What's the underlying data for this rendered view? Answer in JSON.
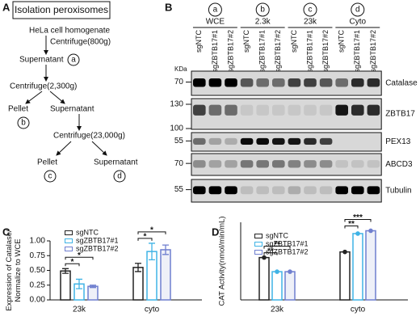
{
  "panel_a": {
    "label": "A",
    "title": "Isolation peroxisomes",
    "nodes": [
      "HeLa cell homogenate",
      "Centrifuge(800g)",
      "Supernatant",
      "a",
      "Centrifuge(2,300g)",
      "Pellet",
      "b",
      "Supernatant",
      "Centrifuge(23,000g)",
      "Pellet",
      "c",
      "Supernatant",
      "d"
    ]
  },
  "panel_b": {
    "label": "B",
    "kda": "KDa",
    "groups": [
      {
        "letter": "a",
        "name": "WCE"
      },
      {
        "letter": "b",
        "name": "2.3k"
      },
      {
        "letter": "c",
        "name": "23k"
      },
      {
        "letter": "d",
        "name": "Cyto"
      }
    ],
    "lanes": [
      "sgNTC",
      "sgZBTB17#1",
      "sgZBTB17#2",
      "sgNTC",
      "sgZBTB17#1",
      "sgZBTB17#2",
      "sgNTC",
      "sgZBTB17#1",
      "sgZBTB17#2",
      "sgNTC",
      "sgZBTB17#1",
      "sgZBTB17#2"
    ],
    "blots": [
      {
        "name": "Catalase",
        "markers": [
          70
        ]
      },
      {
        "name": "ZBTB17",
        "markers": [
          130,
          100
        ]
      },
      {
        "name": "PEX13",
        "markers": [
          55
        ]
      },
      {
        "name": "ABCD3",
        "markers": [
          70
        ]
      },
      {
        "name": "Tubulin",
        "markers": [
          55
        ]
      }
    ]
  },
  "chart_data": [
    {
      "type": "bar",
      "panel_label": "C",
      "ylabel": "Expression of Catalase/\nNormalize to WCE",
      "categories": [
        "23k",
        "cyto"
      ],
      "series": [
        {
          "name": "sgNTC",
          "color": "#222222",
          "values": [
            0.49,
            0.55
          ],
          "errors": [
            0.04,
            0.07
          ]
        },
        {
          "name": "sgZBTB17#1",
          "color": "#3fb3e6",
          "values": [
            0.27,
            0.82
          ],
          "errors": [
            0.08,
            0.14
          ]
        },
        {
          "name": "sgZBTB17#2",
          "color": "#6f7fcf",
          "values": [
            0.23,
            0.85
          ],
          "errors": [
            0.02,
            0.08
          ]
        }
      ],
      "ylim": [
        0,
        1.0
      ],
      "yticks": [
        {
          "value": 0,
          "label": "0.00"
        },
        {
          "value": 0.25,
          "label": "0.25"
        },
        {
          "value": 0.5,
          "label": "0.50"
        },
        {
          "value": 0.75,
          "label": "0.75"
        },
        {
          "value": 1.0,
          "label": "1.00"
        }
      ],
      "annotations": [
        "*",
        "*",
        "*",
        "*"
      ]
    },
    {
      "type": "bar",
      "panel_label": "D",
      "ylabel": "CAT Activity(nmol/min/mL)",
      "categories": [
        "23k",
        "cyto"
      ],
      "series": [
        {
          "name": "sgNTC",
          "color": "#222222",
          "values": [
            30,
            34
          ]
        },
        {
          "name": "sgZBTB17#1",
          "color": "#3fb3e6",
          "values": [
            20,
            47
          ]
        },
        {
          "name": "sgZBTB17#2",
          "color": "#6f7fcf",
          "values": [
            20,
            49
          ]
        }
      ],
      "ylim": [
        0,
        55
      ],
      "annotations": [
        "**",
        "**",
        "**",
        "***"
      ]
    }
  ]
}
